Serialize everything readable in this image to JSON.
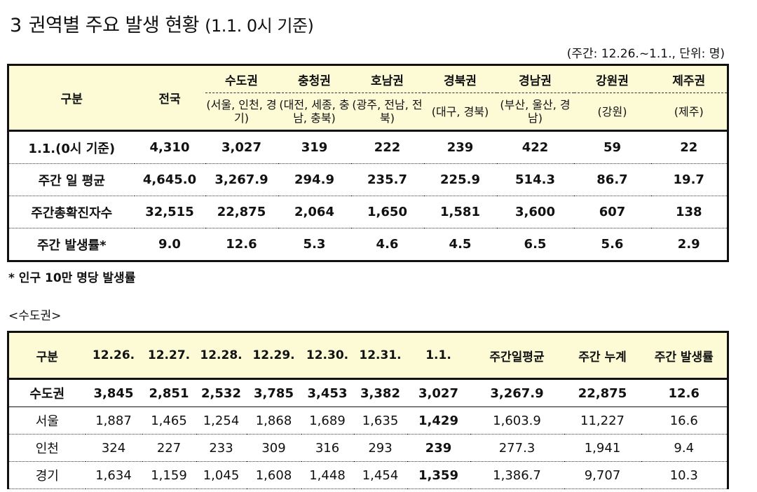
{
  "title": {
    "number": "3",
    "main": "권역별 주요 발생 현황",
    "sub": "(1.1. 0시 기준)"
  },
  "unit_note": "(주간: 12.26.~1.1., 단위: 명)",
  "regional_table": {
    "corner_label": "구분",
    "national_label": "전국",
    "regions": [
      {
        "name": "수도권",
        "sub": "(서울, 인천, 경기)"
      },
      {
        "name": "충청권",
        "sub": "(대전, 세종, 충남, 충북)"
      },
      {
        "name": "호남권",
        "sub": "(광주, 전남, 전북)"
      },
      {
        "name": "경북권",
        "sub": "(대구, 경북)"
      },
      {
        "name": "경남권",
        "sub": "(부산, 울산, 경남)"
      },
      {
        "name": "강원권",
        "sub": "(강원)"
      },
      {
        "name": "제주권",
        "sub": "(제주)"
      }
    ],
    "rows": [
      {
        "label": "1.1.(0시 기준)",
        "values": [
          "4,310",
          "3,027",
          "319",
          "222",
          "239",
          "422",
          "59",
          "22"
        ]
      },
      {
        "label": "주간 일 평균",
        "values": [
          "4,645.0",
          "3,267.9",
          "294.9",
          "235.7",
          "225.9",
          "514.3",
          "86.7",
          "19.7"
        ]
      },
      {
        "label": "주간총확진자수",
        "values": [
          "32,515",
          "22,875",
          "2,064",
          "1,650",
          "1,581",
          "3,600",
          "607",
          "138"
        ]
      },
      {
        "label": "주간 발생률*",
        "values": [
          "9.0",
          "12.6",
          "5.3",
          "4.6",
          "4.5",
          "6.5",
          "5.6",
          "2.9"
        ]
      }
    ]
  },
  "footnote": "* 인구 10만 명당 발생률",
  "section_label": "<수도권>",
  "capital_table": {
    "headers": [
      "구분",
      "12.26.",
      "12.27.",
      "12.28.",
      "12.29.",
      "12.30.",
      "12.31.",
      "1.1.",
      "주간일평균",
      "주간 누계",
      "주간 발생률"
    ],
    "rows": [
      {
        "label": "수도권",
        "values": [
          "3,845",
          "2,851",
          "2,532",
          "3,785",
          "3,453",
          "3,382",
          "3,027",
          "3,267.9",
          "22,875",
          "12.6"
        ]
      },
      {
        "label": "서울",
        "values": [
          "1,887",
          "1,465",
          "1,254",
          "1,868",
          "1,689",
          "1,635",
          "1,429",
          "1,603.9",
          "11,227",
          "16.6"
        ]
      },
      {
        "label": "인천",
        "values": [
          "324",
          "227",
          "233",
          "309",
          "316",
          "293",
          "239",
          "277.3",
          "1,941",
          "9.4"
        ]
      },
      {
        "label": "경기",
        "values": [
          "1,634",
          "1,159",
          "1,045",
          "1,608",
          "1,448",
          "1,454",
          "1,359",
          "1,386.7",
          "9,707",
          "10.3"
        ]
      }
    ]
  }
}
